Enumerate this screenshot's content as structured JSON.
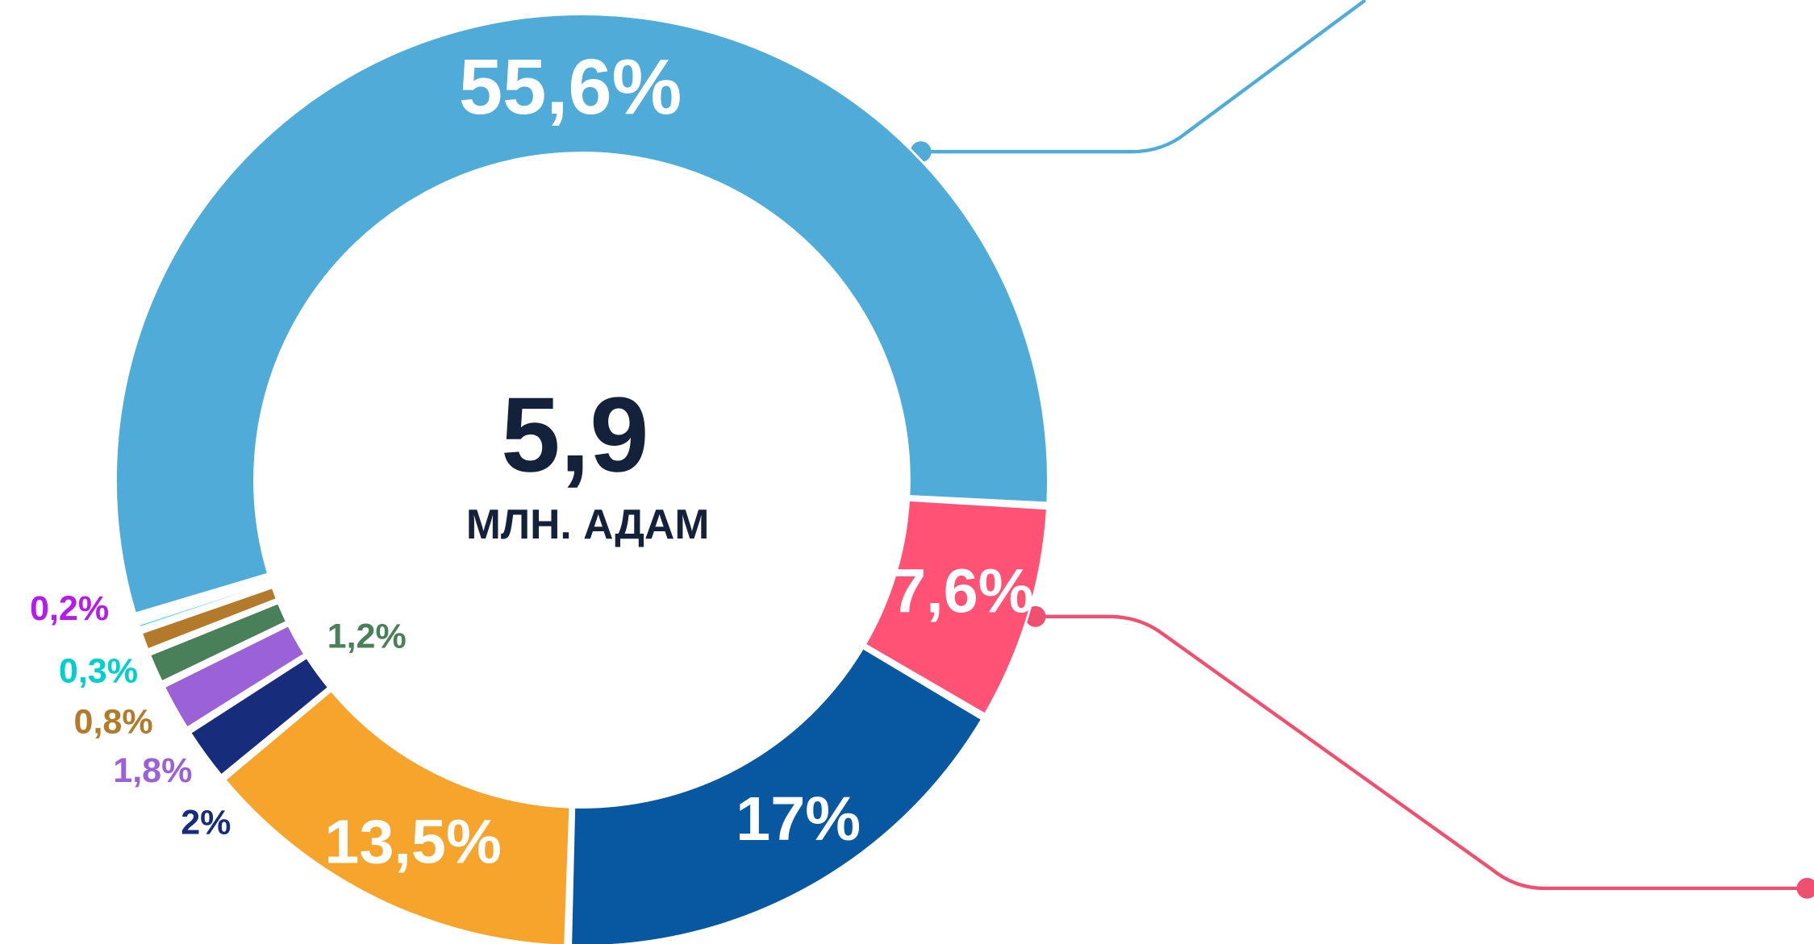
{
  "chart_data": {
    "type": "donut",
    "center_value": "5,9",
    "center_label": "МЛН. АДАМ",
    "series": [
      {
        "values": [
          55.6,
          7.6,
          17,
          13.5,
          2,
          1.8,
          1.2,
          0.8,
          0.3,
          0.2
        ],
        "value_labels": [
          "55,6%",
          "7,6%",
          "17%",
          "13,5%",
          "2%",
          "1,8%",
          "1,2%",
          "0,8%",
          "0,3%",
          "0,2%"
        ],
        "colors": [
          "#4fabd8",
          "#ff5274",
          "#0757a1",
          "#f6a42c",
          "#172c7a",
          "#9a62d6",
          "#4a8059",
          "#b27a2a",
          "#00cfcf",
          "#b31bf0"
        ]
      }
    ]
  }
}
